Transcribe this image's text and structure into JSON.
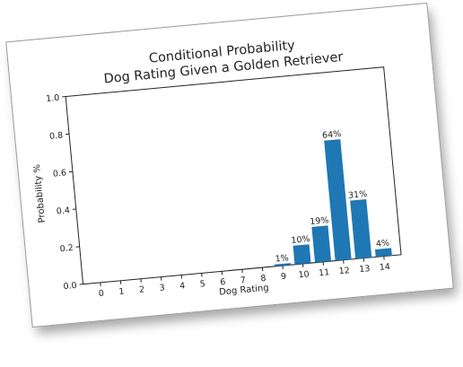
{
  "chart_data": {
    "type": "bar",
    "title": "Conditional Probability",
    "subtitle": "Dog Rating Given a Golden Retriever",
    "xlabel": "Dog Rating",
    "ylabel": "Probability %",
    "categories": [
      "0",
      "1",
      "2",
      "3",
      "4",
      "5",
      "6",
      "7",
      "8",
      "9",
      "10",
      "11",
      "12",
      "13",
      "14"
    ],
    "values": [
      0,
      0,
      0,
      0,
      0,
      0,
      0,
      0,
      0,
      0.01,
      0.1,
      0.19,
      0.64,
      0.31,
      0.04
    ],
    "data_labels": [
      "",
      "",
      "",
      "",
      "",
      "",
      "",
      "",
      "",
      "1%",
      "10%",
      "19%",
      "64%",
      "31%",
      "4%"
    ],
    "ylim": [
      0,
      1.0
    ],
    "yticks": [
      "0.0",
      "0.2",
      "0.4",
      "0.6",
      "0.8",
      "1.0"
    ],
    "bar_color": "#1f77b4",
    "grid": false,
    "legend": "none"
  }
}
